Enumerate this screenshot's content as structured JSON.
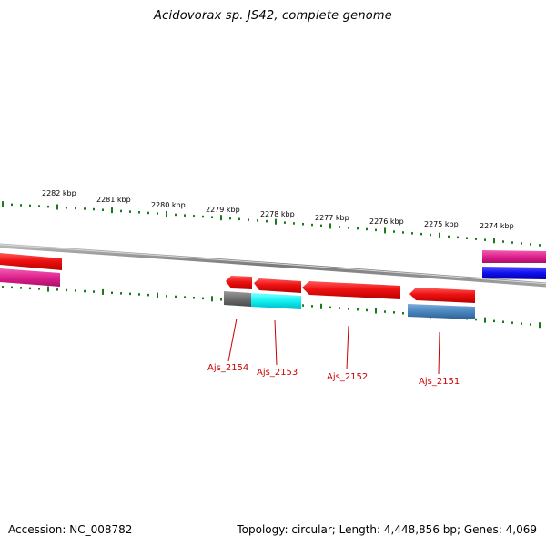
{
  "title": "Acidovorax sp. JS42, complete genome",
  "footer": {
    "accession": "Accession: NC_008782",
    "summary": "Topology: circular; Length: 4,448,856 bp; Genes: 4,069"
  },
  "colors": {
    "backbone": "#8a8a8a",
    "tick": "#1a7a1a",
    "label": "#cc0000",
    "red": "#ee1111",
    "magenta": "#e0208e",
    "blue": "#1010ee",
    "gray": "#6e6e6e",
    "cyan": "#10f0f0",
    "steelblue": "#4a86bf"
  },
  "scale": {
    "unit": "kbp",
    "labels": [
      "2282 kbp",
      "2281 kbp",
      "2280 kbp",
      "2279 kbp",
      "2278 kbp",
      "2277 kbp",
      "2276 kbp",
      "2275 kbp",
      "2274 kbp"
    ]
  },
  "genes": [
    {
      "name": "Ajs_2154"
    },
    {
      "name": "Ajs_2153"
    },
    {
      "name": "Ajs_2152"
    },
    {
      "name": "Ajs_2151"
    }
  ]
}
